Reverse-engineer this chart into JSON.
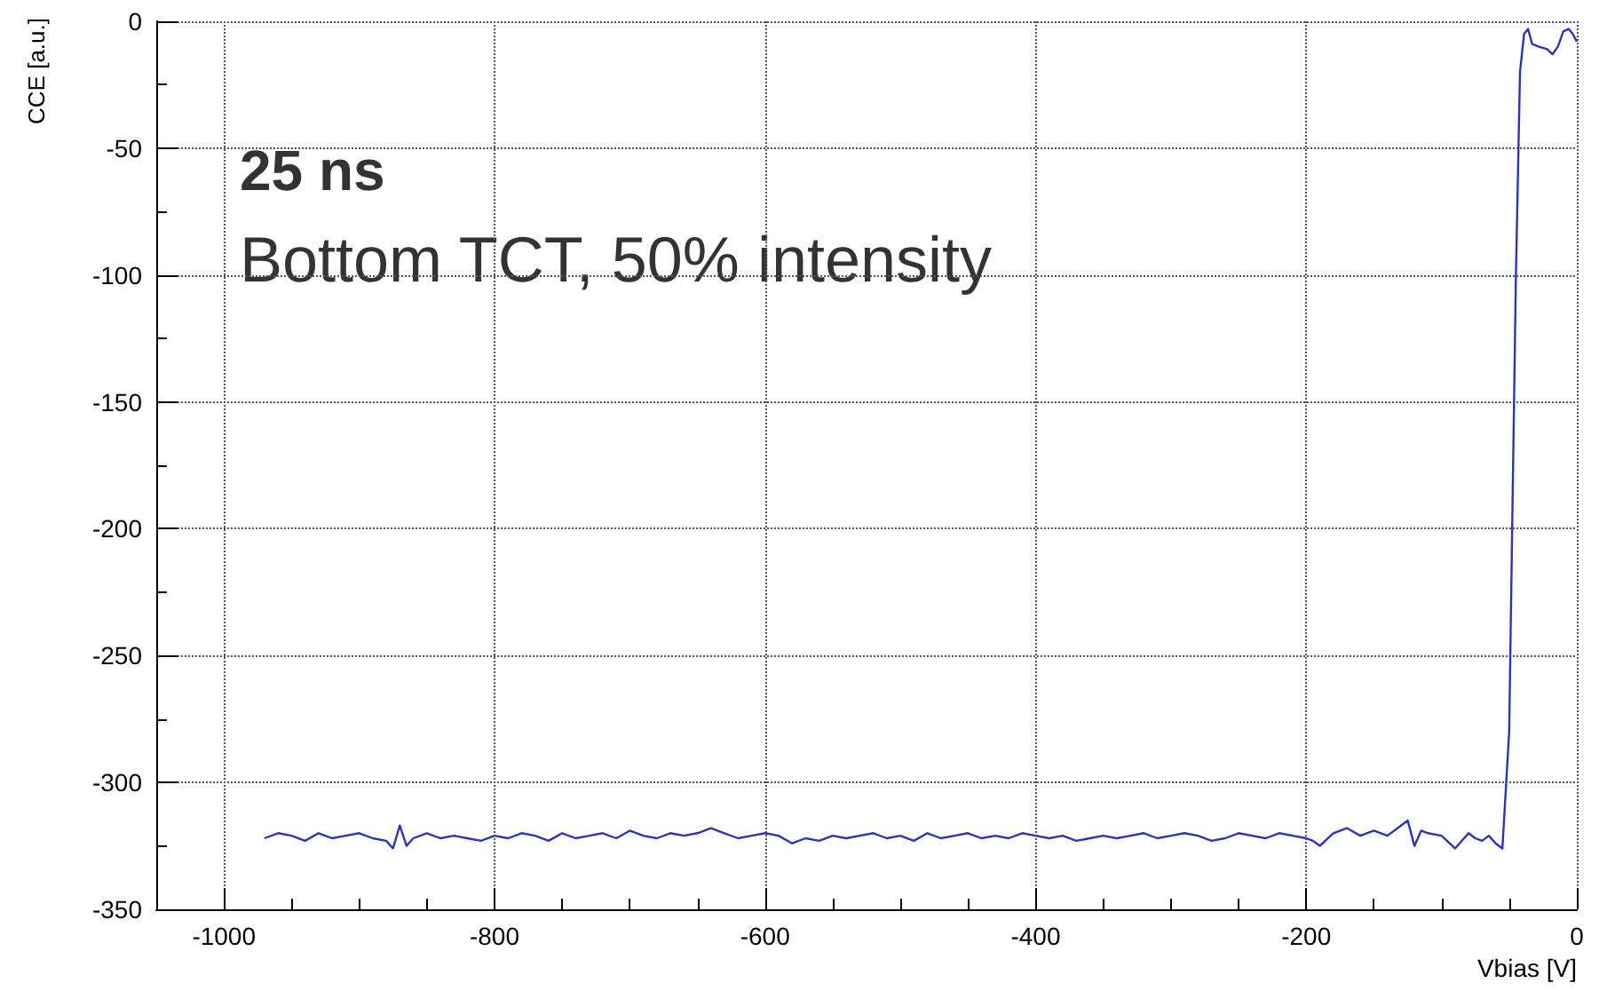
{
  "chart_data": {
    "type": "line",
    "xlabel": "Vbias [V]",
    "ylabel": "CCE [a.u.]",
    "annotations": [
      "25 ns",
      "Bottom TCT, 50% intensity"
    ],
    "x": [
      -970,
      -960,
      -950,
      -940,
      -930,
      -920,
      -910,
      -900,
      -890,
      -880,
      -875,
      -870,
      -865,
      -860,
      -850,
      -840,
      -830,
      -820,
      -810,
      -800,
      -790,
      -780,
      -770,
      -760,
      -750,
      -740,
      -730,
      -720,
      -710,
      -700,
      -690,
      -680,
      -670,
      -660,
      -650,
      -640,
      -630,
      -620,
      -610,
      -600,
      -590,
      -580,
      -570,
      -560,
      -550,
      -540,
      -530,
      -520,
      -510,
      -500,
      -490,
      -480,
      -470,
      -460,
      -450,
      -440,
      -430,
      -420,
      -410,
      -400,
      -390,
      -380,
      -370,
      -360,
      -350,
      -340,
      -330,
      -320,
      -310,
      -300,
      -290,
      -280,
      -270,
      -260,
      -250,
      -240,
      -230,
      -220,
      -210,
      -200,
      -195,
      -190,
      -180,
      -170,
      -160,
      -150,
      -140,
      -130,
      -125,
      -120,
      -115,
      -110,
      -100,
      -90,
      -80,
      -75,
      -70,
      -65,
      -60,
      -55,
      -50,
      -45,
      -42,
      -39,
      -36,
      -33,
      -28,
      -22,
      -18,
      -14,
      -10,
      -6,
      -3,
      0
    ],
    "series": [
      {
        "color": "#2b35b8",
        "values": [
          -322,
          -320,
          -321,
          -323,
          -320,
          -322,
          -321,
          -320,
          -322,
          -323,
          -326,
          -317,
          -325,
          -322,
          -320,
          -322,
          -321,
          -322,
          -323,
          -321,
          -322,
          -320,
          -321,
          -323,
          -320,
          -322,
          -321,
          -320,
          -322,
          -319,
          -321,
          -322,
          -320,
          -321,
          -320,
          -318,
          -320,
          -322,
          -321,
          -320,
          -321,
          -324,
          -322,
          -323,
          -321,
          -322,
          -321,
          -320,
          -322,
          -321,
          -323,
          -320,
          -322,
          -321,
          -320,
          -322,
          -321,
          -322,
          -320,
          -321,
          -322,
          -321,
          -323,
          -322,
          -321,
          -322,
          -321,
          -320,
          -322,
          -321,
          -320,
          -321,
          -323,
          -322,
          -320,
          -321,
          -322,
          -320,
          -321,
          -322,
          -323,
          -325,
          -320,
          -318,
          -321,
          -319,
          -321,
          -317,
          -315,
          -325,
          -319,
          -320,
          -321,
          -326,
          -320,
          -322,
          -323,
          -321,
          -324,
          -326,
          -280,
          -100,
          -20,
          -5,
          -3,
          -9,
          -10,
          -11,
          -13,
          -10,
          -4,
          -3,
          -5,
          -8
        ]
      }
    ],
    "xlim": [
      -1050,
      0
    ],
    "xticks": [
      -1000,
      -800,
      -600,
      -400,
      -200,
      0
    ],
    "ylim": [
      -350,
      0
    ],
    "yticks": [
      -350,
      -300,
      -250,
      -200,
      -150,
      -100,
      -50,
      0
    ],
    "grid": true,
    "marker": "none",
    "line_style": "solid"
  }
}
